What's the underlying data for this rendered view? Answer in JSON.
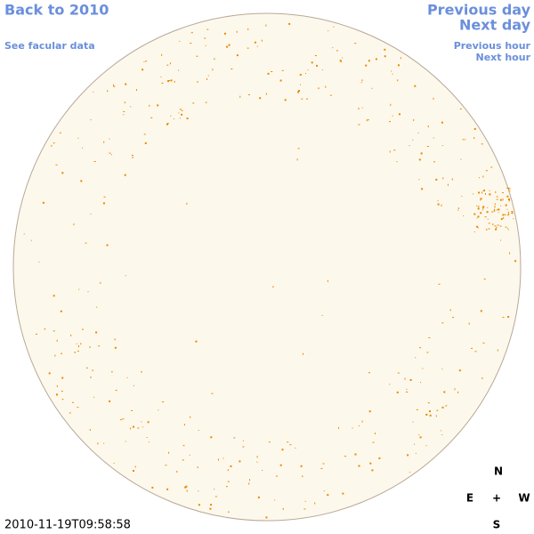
{
  "links": {
    "back": "Back to 2010",
    "facular": "See facular data",
    "previous_day": "Previous day",
    "next_day": "Next day",
    "previous_hour": "Previous hour",
    "next_hour": "Next hour"
  },
  "compass": {
    "north": "N",
    "east": "E",
    "center": "+",
    "west": "W",
    "south": "S"
  },
  "timestamp": "2010-11-19T09:58:58"
}
